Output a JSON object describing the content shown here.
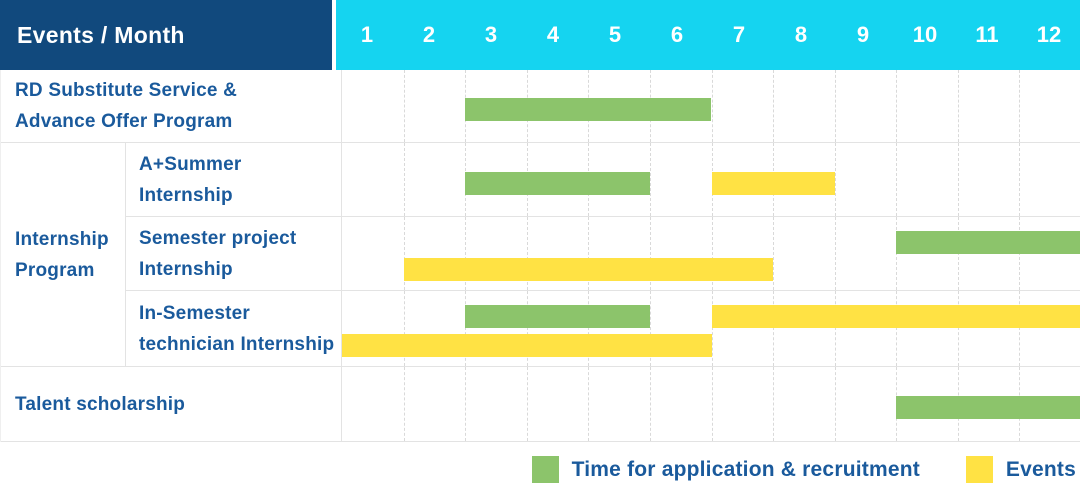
{
  "header": {
    "title": "Events / Month",
    "months": [
      "1",
      "2",
      "3",
      "4",
      "5",
      "6",
      "7",
      "8",
      "9",
      "10",
      "11",
      "12"
    ]
  },
  "colors": {
    "navy": "#11497d",
    "cyan": "#15d4f0",
    "green": "#8cc46b",
    "yellow": "#ffe244",
    "label_blue": "#1a5a9c",
    "grid_line": "#e3e3e3",
    "dash_line": "#d9d9d9"
  },
  "group_label_lines": [
    "Internship",
    "Program"
  ],
  "rows": [
    {
      "label_lines": [
        "RD Substitute Service &",
        "Advance Offer Program"
      ],
      "bars": [
        {
          "color": "green",
          "start": 3,
          "end": 6,
          "band": "mid"
        }
      ]
    },
    {
      "label_lines": [
        "A+Summer",
        "Internship"
      ],
      "bars": [
        {
          "color": "green",
          "start": 3,
          "end": 5,
          "band": "mid"
        },
        {
          "color": "yellow",
          "start": 7,
          "end": 8,
          "band": "mid"
        }
      ]
    },
    {
      "label_lines": [
        "Semester project",
        "Internship"
      ],
      "bars": [
        {
          "color": "green",
          "start": 10,
          "end": 12,
          "band": "upper"
        },
        {
          "color": "yellow",
          "start": 2,
          "end": 7,
          "band": "lower"
        }
      ]
    },
    {
      "label_lines": [
        "In-Semester",
        "technician Internship"
      ],
      "bars": [
        {
          "color": "green",
          "start": 3,
          "end": 5,
          "band": "upper"
        },
        {
          "color": "yellow",
          "start": 7,
          "end": 12,
          "band": "upper"
        },
        {
          "color": "yellow",
          "start": 1,
          "end": 6,
          "band": "lower"
        }
      ]
    },
    {
      "label_lines": [
        "Talent scholarship"
      ],
      "bars": [
        {
          "color": "green",
          "start": 10,
          "end": 12,
          "band": "mid"
        }
      ]
    }
  ],
  "legend": [
    {
      "label": "Time for application & recruitment",
      "color": "#8cc46b"
    },
    {
      "label": "Events",
      "color": "#ffe244"
    }
  ],
  "chart_data": {
    "type": "bar",
    "subtype": "gantt",
    "title": "Events / Month",
    "xlabel": "Month",
    "x_ticks": [
      1,
      2,
      3,
      4,
      5,
      6,
      7,
      8,
      9,
      10,
      11,
      12
    ],
    "x_range": [
      1,
      12
    ],
    "grid": true,
    "legend_position": "bottom-right",
    "series_legend": [
      {
        "name": "Time for application & recruitment",
        "color": "#8cc46b"
      },
      {
        "name": "Events",
        "color": "#ffe244"
      }
    ],
    "rows": [
      {
        "category": "RD Substitute Service & Advance Offer Program",
        "group": null,
        "bars": [
          {
            "series": "Time for application & recruitment",
            "start_month": 3,
            "end_month": 6
          }
        ]
      },
      {
        "category": "A+Summer Internship",
        "group": "Internship Program",
        "bars": [
          {
            "series": "Time for application & recruitment",
            "start_month": 3,
            "end_month": 5
          },
          {
            "series": "Events",
            "start_month": 7,
            "end_month": 8
          }
        ]
      },
      {
        "category": "Semester project Internship",
        "group": "Internship Program",
        "bars": [
          {
            "series": "Time for application & recruitment",
            "start_month": 10,
            "end_month": 12
          },
          {
            "series": "Events",
            "start_month": 2,
            "end_month": 7
          }
        ]
      },
      {
        "category": "In-Semester technician Internship",
        "group": "Internship Program",
        "bars": [
          {
            "series": "Time for application & recruitment",
            "start_month": 3,
            "end_month": 5
          },
          {
            "series": "Events",
            "start_month": 7,
            "end_month": 12
          },
          {
            "series": "Events",
            "start_month": 1,
            "end_month": 6
          }
        ]
      },
      {
        "category": "Talent scholarship",
        "group": null,
        "bars": [
          {
            "series": "Time for application & recruitment",
            "start_month": 10,
            "end_month": 12
          }
        ]
      }
    ]
  }
}
